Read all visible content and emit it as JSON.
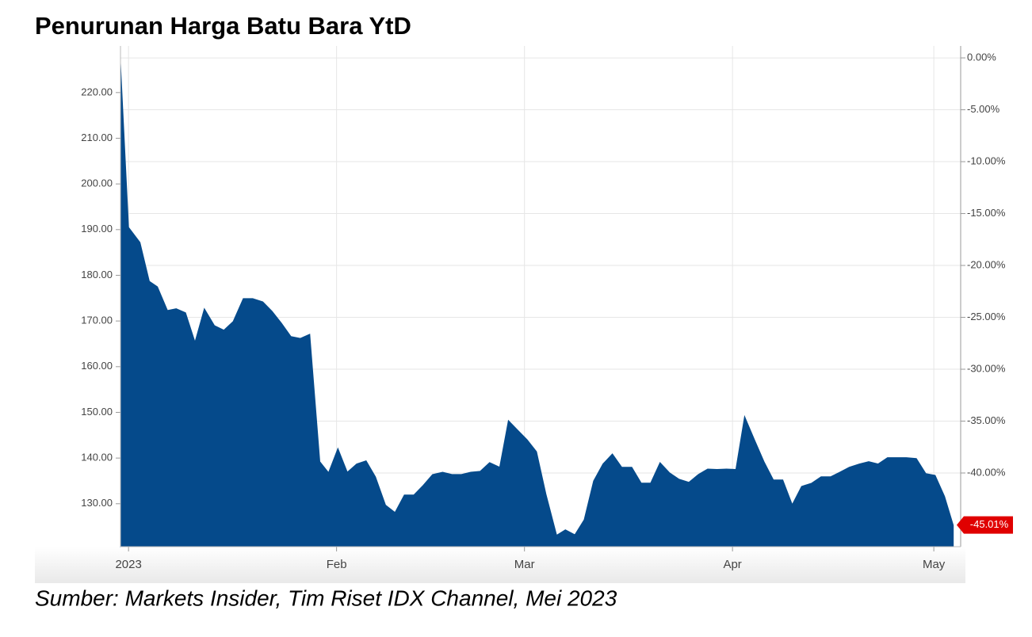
{
  "chart_data": {
    "type": "area",
    "title": "Penurunan Harga Batu Bara YtD",
    "source": "Sumber: Markets Insider, Tim Riset IDX Channel, Mei 2023",
    "color": "#054a8b",
    "grid": true,
    "x": [
      -1.2,
      0.0,
      1.7,
      3.1,
      4.3,
      5.8,
      7.1,
      8.5,
      9.9,
      11.3,
      12.8,
      14.2,
      15.6,
      17.1,
      18.5,
      20.0,
      21.4,
      22.8,
      24.2,
      25.6,
      27.0,
      28.5,
      29.8,
      31.2,
      32.6,
      34.0,
      35.4,
      36.8,
      38.3,
      39.7,
      41.1,
      42.5,
      43.9,
      45.3,
      46.8,
      48.2,
      49.6,
      51.0,
      52.4,
      53.8,
      55.3,
      56.6,
      58.0,
      59.4,
      60.8,
      62.2,
      63.8,
      65.1,
      66.5,
      67.9,
      69.3,
      70.7,
      72.1,
      73.5,
      75.0,
      76.4,
      77.8,
      79.2,
      80.6,
      82.0,
      83.5,
      84.9,
      86.3,
      87.7,
      89.1,
      90.5,
      91.8,
      93.3,
      94.7,
      96.1,
      97.5,
      98.9,
      100.3,
      101.8,
      103.2,
      104.6,
      106.0,
      107.4,
      108.9,
      110.3,
      111.7,
      113.1,
      114.5,
      115.9,
      117.4,
      118.8,
      120.2,
      121.6,
      122.9
    ],
    "values": [
      226.4,
      190.5,
      187.2,
      178.7,
      177.5,
      172.3,
      172.7,
      171.8,
      165.4,
      172.7,
      169.0,
      168.0,
      169.9,
      174.9,
      174.9,
      174.2,
      172.1,
      169.5,
      166.6,
      166.2,
      167.1,
      139.2,
      136.8,
      142.1,
      136.9,
      138.7,
      139.4,
      135.9,
      129.7,
      128.1,
      131.9,
      131.9,
      134.0,
      136.4,
      136.9,
      136.4,
      136.4,
      136.9,
      137.1,
      139.0,
      138.0,
      148.2,
      146.1,
      144.0,
      141.4,
      132.1,
      123.1,
      124.3,
      123.2,
      126.5,
      135.0,
      138.7,
      140.9,
      138.0,
      138.0,
      134.5,
      134.5,
      139.0,
      136.8,
      135.4,
      134.7,
      136.4,
      137.6,
      137.5,
      137.6,
      137.5,
      149.1,
      143.9,
      139.2,
      135.2,
      135.2,
      129.8,
      133.8,
      134.5,
      135.9,
      135.9,
      136.9,
      138.0,
      138.7,
      139.2,
      138.7,
      140.1,
      140.1,
      140.1,
      139.9,
      136.6,
      136.2,
      131.6,
      125.3
    ],
    "xlim": [
      -1.2,
      124.0
    ],
    "xticks": [
      {
        "value": 0,
        "label": "2023"
      },
      {
        "value": 31,
        "label": "Feb"
      },
      {
        "value": 59,
        "label": "Mar"
      },
      {
        "value": 90,
        "label": "Apr"
      },
      {
        "value": 120,
        "label": "May"
      }
    ],
    "ylim": [
      120.6,
      230.2
    ],
    "yticks": [
      {
        "value": 130,
        "label": "130.00"
      },
      {
        "value": 140,
        "label": "140.00"
      },
      {
        "value": 150,
        "label": "150.00"
      },
      {
        "value": 160,
        "label": "160.00"
      },
      {
        "value": 170,
        "label": "170.00"
      },
      {
        "value": 180,
        "label": "180.00"
      },
      {
        "value": 190,
        "label": "190.00"
      },
      {
        "value": 200,
        "label": "200.00"
      },
      {
        "value": 210,
        "label": "210.00"
      },
      {
        "value": 220,
        "label": "220.00"
      }
    ],
    "y2lim": [
      -47.1,
      1.15
    ],
    "y2ticks": [
      {
        "value": 0,
        "label": "0.00%"
      },
      {
        "value": -5,
        "label": "-5.00%"
      },
      {
        "value": -10,
        "label": "-10.00%"
      },
      {
        "value": -15,
        "label": "-15.00%"
      },
      {
        "value": -20,
        "label": "-20.00%"
      },
      {
        "value": -25,
        "label": "-25.00%"
      },
      {
        "value": -30,
        "label": "-30.00%"
      },
      {
        "value": -35,
        "label": "-35.00%"
      },
      {
        "value": -40,
        "label": "-40.00%"
      }
    ],
    "last_change": {
      "value": -45.01,
      "label": "-45.01%"
    }
  }
}
